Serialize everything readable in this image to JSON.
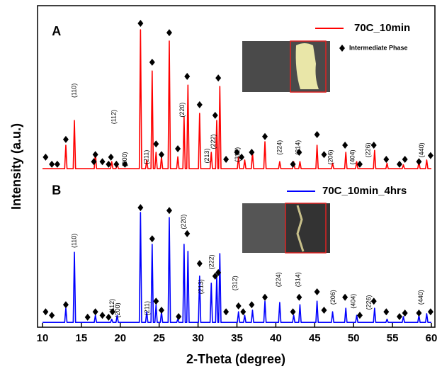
{
  "chart_data": {
    "type": "line",
    "xlabel": "2-Theta (degree)",
    "ylabel": "Intensity (a.u.)",
    "xlim": [
      10,
      60
    ],
    "xticks": [
      10,
      15,
      20,
      25,
      30,
      35,
      40,
      45,
      50,
      55,
      60
    ],
    "ylim": [
      0,
      100
    ],
    "x": [
      10,
      12.85,
      13,
      13.15,
      13.95,
      14.1,
      14.25,
      16.65,
      16.8,
      16.95,
      18.75,
      18.9,
      19.05,
      19.45,
      19.6,
      19.75,
      22.45,
      22.6,
      22.75,
      23.25,
      23.4,
      23.55,
      23.95,
      24.1,
      24.25,
      24.45,
      24.6,
      24.75,
      25.15,
      25.3,
      25.45,
      26.15,
      26.3,
      26.45,
      27.25,
      27.4,
      27.55,
      28.05,
      28.2,
      28.35,
      28.55,
      28.7,
      28.85,
      30.05,
      30.2,
      30.35,
      31.55,
      31.7,
      31.85,
      32.25,
      32.4,
      32.55,
      32.65,
      32.8,
      32.95,
      35.05,
      35.2,
      35.35,
      35.85,
      36,
      36.15,
      36.85,
      37,
      37.15,
      38.45,
      38.6,
      38.75,
      40.35,
      40.5,
      40.65,
      42.15,
      42.3,
      42.45,
      42.95,
      43.1,
      43.25,
      45.15,
      45.3,
      45.45,
      47.15,
      47.3,
      47.45,
      48.85,
      49,
      49.15,
      50.25,
      50.4,
      50.55,
      52.55,
      52.7,
      52.85,
      54.15,
      54.3,
      54.45,
      56.25,
      56.4,
      56.55,
      58.25,
      58.4,
      58.55,
      59.25,
      59.4,
      59.55,
      60
    ],
    "series": [
      {
        "name": "70C_10min",
        "color": "#ff0000",
        "values": [
          49.3,
          49.3,
          56.6,
          49.3,
          49.3,
          64.3,
          49.3,
          49.3,
          54.4,
          49.3,
          49.3,
          51.5,
          49.3,
          49.3,
          51,
          49.3,
          49.3,
          92.5,
          49.3,
          49.3,
          52,
          49.3,
          49.3,
          79.7,
          49.3,
          49.3,
          54.4,
          49.3,
          49.3,
          53,
          49.3,
          49.3,
          89,
          49.3,
          49.3,
          53,
          49.3,
          49.3,
          65.4,
          49.3,
          49.3,
          75.3,
          49.3,
          49.3,
          66.5,
          49.3,
          49.3,
          54.4,
          49.3,
          49.3,
          64.3,
          49.3,
          49.3,
          74.9,
          49.3,
          49.3,
          53,
          49.3,
          49.3,
          52,
          49.3,
          49.3,
          54.4,
          49.3,
          49.3,
          57.7,
          49.3,
          49.3,
          51.5,
          49.3,
          49.3,
          51.5,
          49.3,
          49.3,
          51.5,
          49.3,
          49.3,
          56.6,
          49.3,
          49.3,
          51,
          49.3,
          49.3,
          54.4,
          49.3,
          49.3,
          51.5,
          49.3,
          49.3,
          55,
          49.3,
          49.3,
          51,
          49.3,
          49.3,
          50.5,
          49.3,
          49.3,
          51.5,
          49.3,
          49.3,
          52,
          49.3,
          49.3
        ]
      },
      {
        "name": "70C_10min_4hrs",
        "color": "#0000ff",
        "values": [
          1.5,
          1.5,
          5.9,
          1.5,
          1.5,
          23.3,
          1.5,
          1.5,
          3.7,
          1.5,
          1.5,
          2.5,
          1.5,
          1.5,
          3.7,
          1.5,
          1.5,
          35.7,
          1.5,
          1.5,
          4.8,
          1.5,
          1.5,
          25.8,
          1.5,
          1.5,
          7,
          1.5,
          1.5,
          4.8,
          1.5,
          1.5,
          34.1,
          1.5,
          1.5,
          2.5,
          1.5,
          1.5,
          25.8,
          1.5,
          1.5,
          23.6,
          1.5,
          1.5,
          15.9,
          1.5,
          1.5,
          13.7,
          1.5,
          1.5,
          15.9,
          1.5,
          1.5,
          22.9,
          1.5,
          1.5,
          4.8,
          1.5,
          1.5,
          3.7,
          1.5,
          1.5,
          5.3,
          1.5,
          1.5,
          8.1,
          1.5,
          1.5,
          7.7,
          1.5,
          1.5,
          3.7,
          1.5,
          1.5,
          7,
          1.5,
          1.5,
          8.1,
          1.5,
          1.5,
          4.8,
          1.5,
          1.5,
          5.9,
          1.5,
          1.5,
          3.7,
          1.5,
          1.5,
          5.9,
          1.5,
          1.5,
          2.5,
          1.5,
          1.5,
          3.3,
          1.5,
          1.5,
          3.7,
          1.5,
          1.5,
          4.2,
          1.5,
          1.5
        ]
      },
      {
        "name": "Intermediate Phase",
        "type": "scatter",
        "color": "#000000",
        "x": [
          10.4,
          11.2,
          11.9,
          13.0,
          16.6,
          16.8,
          17.7,
          18.5,
          18.8,
          19.5,
          20.6,
          22.6,
          24.1,
          24.6,
          25.3,
          26.3,
          27.4,
          28.6,
          30.2,
          32.2,
          32.6,
          33.6,
          35.0,
          35.6,
          36.9,
          38.6,
          42.2,
          43.0,
          45.3,
          46.2,
          48.9,
          50.8,
          52.6,
          54.2,
          55.9,
          56.6,
          58.4,
          59.9,
          10.4,
          11.2,
          13.0,
          15.8,
          16.8,
          17.7,
          18.5,
          19.0,
          22.6,
          24.1,
          24.6,
          25.3,
          26.3,
          27.5,
          28.6,
          30.2,
          32.2,
          32.6,
          33.6,
          35.2,
          35.8,
          36.9,
          38.6,
          42.2,
          43.0,
          45.3,
          46.2,
          48.9,
          50.8,
          52.6,
          54.2,
          55.9,
          56.6,
          58.4,
          59.9
        ],
        "values": [
          52.9,
          50.7,
          50.7,
          58.4,
          51.5,
          53.7,
          51.5,
          50.7,
          52.9,
          50.7,
          50.7,
          94.5,
          82.4,
          57.0,
          53.7,
          91.6,
          55.5,
          78.0,
          69.2,
          65.9,
          77.5,
          52.2,
          54.4,
          52.9,
          54.4,
          59.3,
          50.7,
          54.4,
          59.9,
          53.7,
          56.6,
          50.7,
          56.6,
          52.2,
          50.7,
          52.2,
          51.5,
          53.4,
          4.8,
          3.7,
          7.0,
          3.1,
          4.8,
          3.7,
          3.1,
          4.8,
          37.2,
          27.5,
          8.1,
          5.3,
          36.3,
          3.3,
          29.1,
          19.8,
          15.9,
          17.0,
          4.8,
          6.6,
          4.8,
          7.0,
          9.3,
          4.8,
          9.3,
          11.0,
          5.3,
          9.3,
          3.7,
          8.1,
          4.8,
          3.3,
          4.4,
          4.4,
          4.8
        ]
      }
    ],
    "annotations": [
      {
        "text": "A",
        "x": 11.8,
        "y": 91.8
      },
      {
        "text": "B",
        "x": 11.8,
        "y": 42.3
      },
      {
        "text": "(110)",
        "x": 14.1,
        "y": 73.6
      },
      {
        "text": "(112)",
        "x": 19.2,
        "y": 65.4
      },
      {
        "text": "(200)",
        "x": 20.6,
        "y": 52.2
      },
      {
        "text": "(211)",
        "x": 23.4,
        "y": 52.9
      },
      {
        "text": "(220)",
        "x": 28.0,
        "y": 67.6
      },
      {
        "text": "(213)",
        "x": 31.2,
        "y": 53.3
      },
      {
        "text": "(222)",
        "x": 32.0,
        "y": 57.7
      },
      {
        "text": "(312)",
        "x": 35.1,
        "y": 53.7
      },
      {
        "text": "(224)",
        "x": 40.5,
        "y": 55.9
      },
      {
        "text": "(314)",
        "x": 42.9,
        "y": 55.9
      },
      {
        "text": "(206)",
        "x": 47.1,
        "y": 52.9
      },
      {
        "text": "(404)",
        "x": 49.9,
        "y": 52.9
      },
      {
        "text": "(226)",
        "x": 51.9,
        "y": 55.1
      },
      {
        "text": "(440)",
        "x": 58.8,
        "y": 55.1
      },
      {
        "text": "(110)",
        "x": 14.1,
        "y": 26.9
      },
      {
        "text": "(112)",
        "x": 19.0,
        "y": 6.6
      },
      {
        "text": "(200)",
        "x": 19.7,
        "y": 5.3
      },
      {
        "text": "(211)",
        "x": 23.5,
        "y": 5.9
      },
      {
        "text": "(220)",
        "x": 28.2,
        "y": 32.8
      },
      {
        "text": "(213)",
        "x": 30.4,
        "y": 12.6
      },
      {
        "text": "(222)",
        "x": 31.8,
        "y": 20.3
      },
      {
        "text": "(312)",
        "x": 34.8,
        "y": 13.7
      },
      {
        "text": "(224)",
        "x": 40.4,
        "y": 14.8
      },
      {
        "text": "(314)",
        "x": 42.9,
        "y": 14.8
      },
      {
        "text": "(206)",
        "x": 47.4,
        "y": 9.3
      },
      {
        "text": "(404)",
        "x": 50.0,
        "y": 8.1
      },
      {
        "text": "(226)",
        "x": 52.0,
        "y": 7.7
      },
      {
        "text": "(440)",
        "x": 58.7,
        "y": 9.3
      }
    ]
  }
}
